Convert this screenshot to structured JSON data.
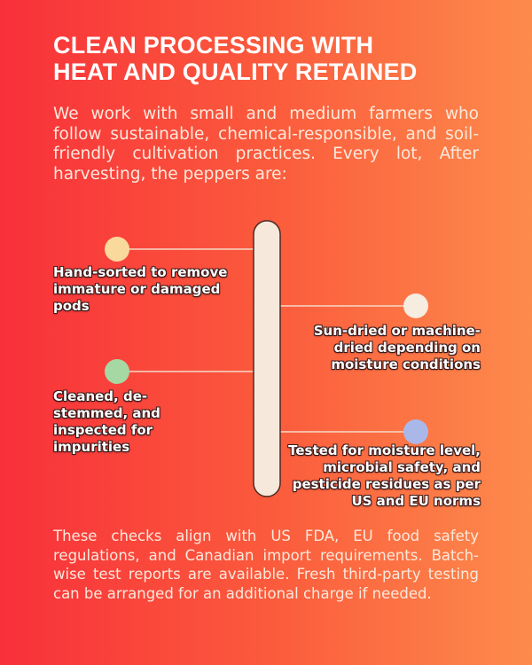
{
  "title": [
    "CLEAN PROCESSING WITH",
    "HEAT AND QUALITY RETAINED"
  ],
  "intro": "We work with small and medium farmers who follow sustainable, chemical-responsible, and soil-friendly cultivation practices. Every lot, After harvesting, the peppers are:",
  "steps": [
    "Hand-sorted to remove immature or damaged pods",
    "Sun-dried or machine-dried depending on moisture conditions",
    "Cleaned, de-stemmed, and inspected for impurities",
    "Tested for moisture level, microbial safety, and pesticide residues as per US and EU norms"
  ],
  "outro": "These checks align with US FDA, EU food safety regulations, and Canadian import requirements. Batch-wise test reports are available. Fresh third-party testing can be arranged for an additional charge if needed."
}
